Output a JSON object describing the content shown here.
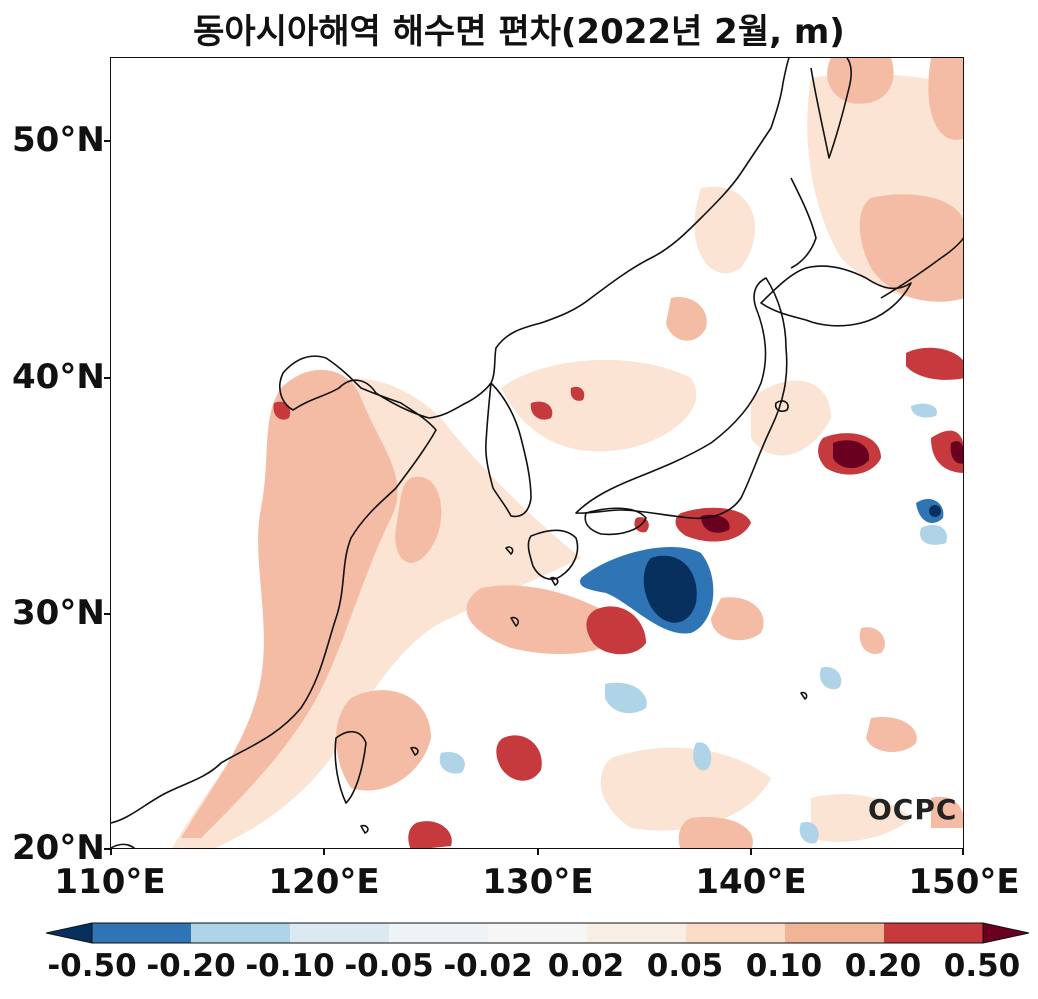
{
  "title": "동아시아해역 해수면 편차(2022년 2월, m)",
  "map": {
    "lon_range": [
      110,
      150
    ],
    "lat_range": [
      20,
      53.5
    ],
    "lon_ticks": [
      "110°E",
      "120°E",
      "130°E",
      "140°E",
      "150°E"
    ],
    "lat_ticks": [
      "20°N",
      "30°N",
      "40°N",
      "50°N"
    ],
    "logo_text": "OCPC"
  },
  "colorbar": {
    "labels": [
      "-0.50",
      "-0.20",
      "-0.10",
      "-0.05",
      "-0.02",
      "0.02",
      "0.05",
      "0.10",
      "0.20",
      "0.50"
    ],
    "colors": [
      "#2f74b5",
      "#afd4e8",
      "#dbe9f3",
      "#eef3f8",
      "#f6f6f6",
      "#f8eee4",
      "#fbdcc7",
      "#f2b497",
      "#c6393d"
    ],
    "under_color": "#08305f",
    "over_color": "#6a0020"
  },
  "colors": {
    "strong_neg": "#08305f",
    "neg": "#2f74b5",
    "light_neg": "#afd4e8",
    "very_light_pos": "#fbe4d3",
    "light_pos": "#f4bca4",
    "pos": "#c6393d",
    "strong_pos": "#6a0020"
  }
}
